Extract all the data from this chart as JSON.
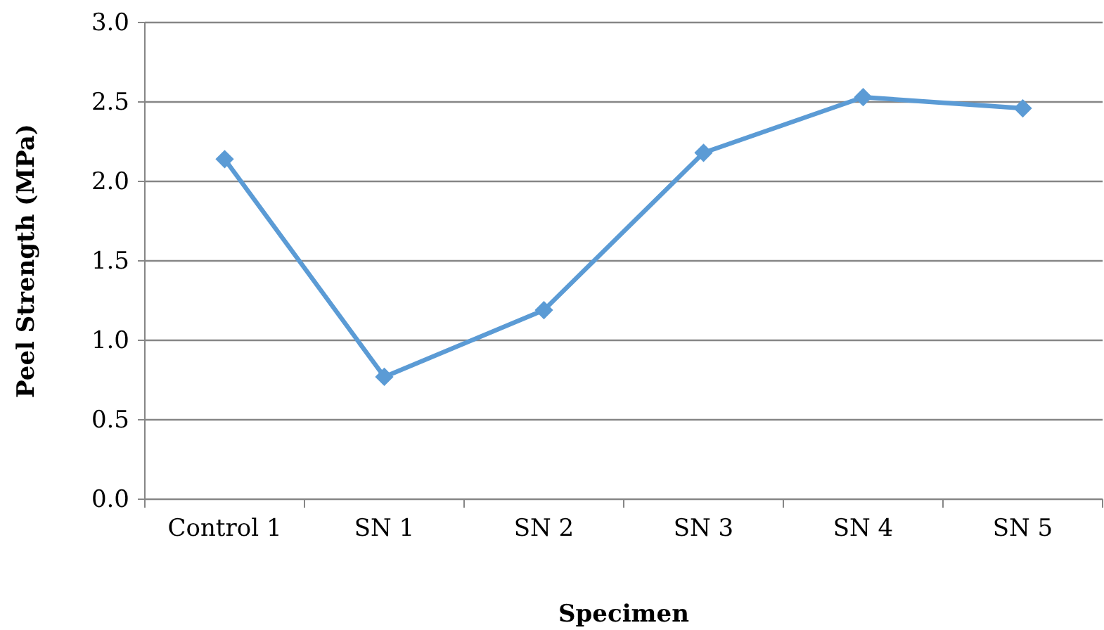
{
  "chart_data": {
    "type": "line",
    "xlabel": "Specimen",
    "ylabel": "Peel Strength (MPa)",
    "categories": [
      "Control 1",
      "SN 1",
      "SN 2",
      "SN 3",
      "SN 4",
      "SN 5"
    ],
    "series": [
      {
        "color": "#5b9bd5",
        "values": [
          2.14,
          0.77,
          1.19,
          2.18,
          2.53,
          2.46
        ]
      }
    ],
    "ylim": [
      0,
      3
    ],
    "yticks": [
      {
        "value": 0,
        "label": "0.0"
      },
      {
        "value": 0.5,
        "label": "0.5"
      },
      {
        "value": 1,
        "label": "1.0"
      },
      {
        "value": 1.5,
        "label": "1.5"
      },
      {
        "value": 2,
        "label": "2.0"
      },
      {
        "value": 2.5,
        "label": "2.5"
      },
      {
        "value": 3,
        "label": "3.0"
      }
    ],
    "grid": "y",
    "marker": "diamond",
    "line_style": "solid"
  }
}
